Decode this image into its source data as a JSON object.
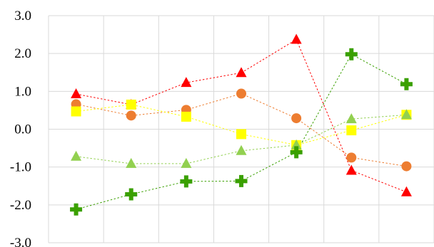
{
  "chart_data": {
    "type": "line",
    "title": "",
    "xlabel": "",
    "ylabel": "",
    "ylim": [
      -3.0,
      3.0
    ],
    "yticks": [
      "3.0",
      "2.0",
      "1.0",
      "0.0",
      "-1.0",
      "-2.0",
      "-3.0"
    ],
    "ytick_values": [
      3.0,
      2.0,
      1.0,
      0.0,
      -1.0,
      -2.0,
      -3.0
    ],
    "x": [
      1,
      2,
      3,
      4,
      5,
      6,
      7
    ],
    "grid": "vertical and horizontal, light gray",
    "legend": "none",
    "series": [
      {
        "marker": "triangle",
        "color": "#ff0000",
        "values": [
          0.93,
          0.65,
          1.23,
          1.49,
          2.37,
          -1.09,
          -1.66
        ]
      },
      {
        "marker": "circle",
        "color": "#ed7d31",
        "values": [
          0.66,
          0.36,
          0.51,
          0.94,
          0.29,
          -0.75,
          -0.98
        ]
      },
      {
        "marker": "square",
        "color": "#ffff00",
        "values": [
          0.47,
          0.65,
          0.33,
          -0.13,
          -0.42,
          -0.03,
          0.38
        ]
      },
      {
        "marker": "triangle",
        "color": "#92d050",
        "values": [
          -0.72,
          -0.91,
          -0.91,
          -0.57,
          -0.42,
          0.27,
          0.38
        ]
      },
      {
        "marker": "cross",
        "color": "#3aa000",
        "values": [
          -2.12,
          -1.72,
          -1.38,
          -1.37,
          -0.61,
          1.98,
          1.19
        ]
      }
    ]
  }
}
